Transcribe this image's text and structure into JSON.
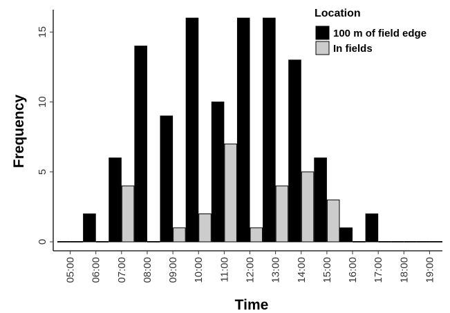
{
  "chart_data": {
    "type": "bar",
    "title": "",
    "xlabel": "Time",
    "ylabel": "Frequency",
    "categories": [
      "05:00",
      "06:00",
      "07:00",
      "08:00",
      "09:00",
      "10:00",
      "11:00",
      "12:00",
      "13:00",
      "14:00",
      "15:00",
      "16:00",
      "17:00",
      "18:00",
      "19:00"
    ],
    "series": [
      {
        "name": "100 m of field edge",
        "color": "#000000",
        "values": [
          0,
          2,
          6,
          14,
          9,
          16,
          10,
          16,
          16,
          13,
          6,
          1,
          2,
          0,
          0
        ]
      },
      {
        "name": "In fields",
        "color": "#cccccc",
        "values": [
          0,
          0,
          4,
          0,
          1,
          2,
          7,
          1,
          4,
          5,
          3,
          0,
          0,
          0,
          0
        ]
      }
    ],
    "ylim": [
      0,
      16.6
    ],
    "yticks": [
      0,
      5,
      10,
      15
    ],
    "legend": {
      "title": "Location",
      "position": "top-right"
    },
    "grid": false
  }
}
